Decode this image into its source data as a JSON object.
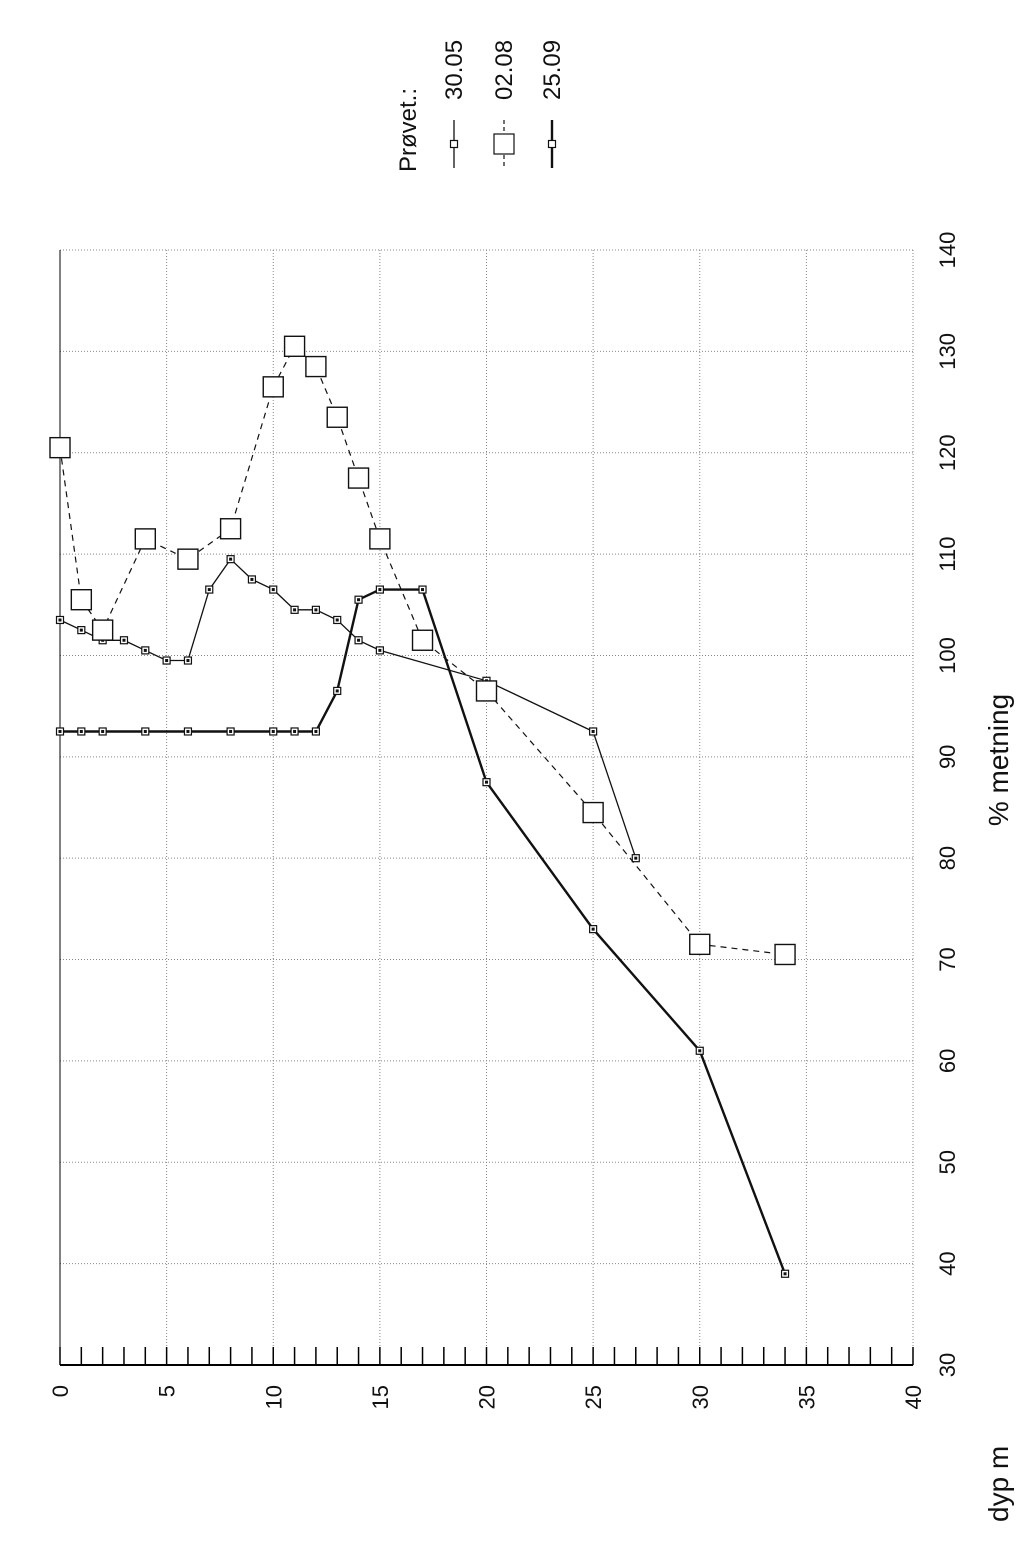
{
  "chart_data": {
    "type": "line",
    "orientation": "rotated-90",
    "xlabel": "dyp m",
    "ylabel": "% metning",
    "xlim": [
      0,
      40
    ],
    "ylim": [
      30,
      140
    ],
    "x_ticks": [
      0,
      5,
      10,
      15,
      20,
      25,
      30,
      35,
      40
    ],
    "y_ticks": [
      30,
      40,
      50,
      60,
      70,
      80,
      90,
      100,
      110,
      120,
      130,
      140
    ],
    "grid": true,
    "legend": {
      "title": "Prøvet.:",
      "placement": "top-right"
    },
    "series": [
      {
        "name": "30.05",
        "style": "thin-solid",
        "marker": "small-square",
        "points": [
          [
            0,
            103.5
          ],
          [
            1,
            102.5
          ],
          [
            2,
            101.5
          ],
          [
            3,
            101.5
          ],
          [
            4,
            100.5
          ],
          [
            5,
            99.5
          ],
          [
            6,
            99.5
          ],
          [
            7,
            106.5
          ],
          [
            8,
            109.5
          ],
          [
            9,
            107.5
          ],
          [
            10,
            106.5
          ],
          [
            11,
            104.5
          ],
          [
            12,
            104.5
          ],
          [
            13,
            103.5
          ],
          [
            14,
            101.5
          ],
          [
            15,
            100.5
          ],
          [
            20,
            97.5
          ],
          [
            25,
            92.5
          ],
          [
            27,
            80
          ]
        ]
      },
      {
        "name": "02.08",
        "style": "dashed",
        "marker": "large-square",
        "points": [
          [
            0,
            120.5
          ],
          [
            1,
            105.5
          ],
          [
            2,
            102.5
          ],
          [
            4,
            111.5
          ],
          [
            6,
            109.5
          ],
          [
            8,
            112.5
          ],
          [
            10,
            126.5
          ],
          [
            11,
            130.5
          ],
          [
            12,
            128.5
          ],
          [
            13,
            123.5
          ],
          [
            14,
            117.5
          ],
          [
            15,
            111.5
          ],
          [
            17,
            101.5
          ],
          [
            20,
            96.5
          ],
          [
            25,
            84.5
          ],
          [
            30,
            71.5
          ],
          [
            34,
            70.5
          ]
        ]
      },
      {
        "name": "25.09",
        "style": "thick-solid",
        "marker": "small-square",
        "points": [
          [
            0,
            92.5
          ],
          [
            1,
            92.5
          ],
          [
            2,
            92.5
          ],
          [
            4,
            92.5
          ],
          [
            6,
            92.5
          ],
          [
            8,
            92.5
          ],
          [
            10,
            92.5
          ],
          [
            11,
            92.5
          ],
          [
            12,
            92.5
          ],
          [
            13,
            96.5
          ],
          [
            14,
            105.5
          ],
          [
            15,
            106.5
          ],
          [
            17,
            106.5
          ],
          [
            20,
            87.5
          ],
          [
            25,
            73
          ],
          [
            30,
            61
          ],
          [
            34,
            39
          ]
        ]
      }
    ]
  }
}
